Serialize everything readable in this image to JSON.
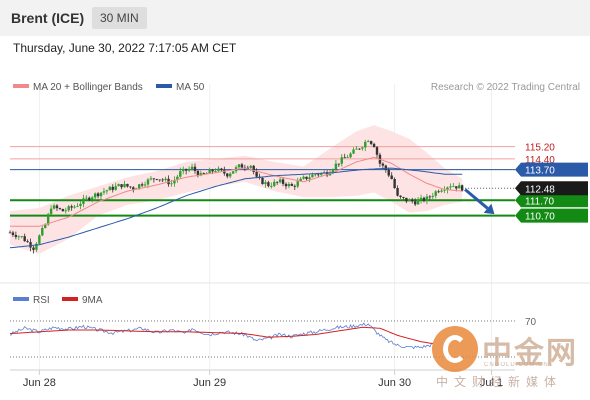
{
  "header": {
    "title": "Brent (ICE)",
    "timeframe": "30 MIN"
  },
  "timestamp": "Thursday, June 30, 2022 7:17:05 AM CET",
  "legend": {
    "ma20": {
      "label": "MA 20 + Bollinger Bands",
      "color": "#f08a8a"
    },
    "ma50": {
      "label": "MA 50",
      "color": "#2a5aa8"
    }
  },
  "credit": "Research © 2022 Trading Central",
  "colors": {
    "green": "#138a13",
    "blue": "#2a5aa8",
    "red_level": "#f0a0a0",
    "band_fill": "#fde3e3",
    "candle_up": "#2e9e2e",
    "candle_down": "#333333",
    "arrow": "#2a5aa8",
    "rsi": "#5a7fd0",
    "rsi_ma": "#d42020"
  },
  "indicator_legend": {
    "rsi": "RSI",
    "rsi_ma": "9MA"
  },
  "watermark": {
    "name": "中金网",
    "url": "CNGOLD.COM.CN",
    "sub": "中文财经新媒体"
  },
  "chart_data": [
    {
      "type": "candlestick",
      "title": "Brent (ICE)",
      "interval": "30 MIN",
      "x_labels": [
        "Jun 28",
        "Jun 29",
        "Jun 30",
        "Jul 1"
      ],
      "ylim": [
        106.5,
        118.5
      ],
      "current_price": {
        "value": 112.48,
        "label": "112.48"
      },
      "levels": [
        {
          "label": "115.20",
          "value": 115.2,
          "role": "resistance",
          "style": "red-text"
        },
        {
          "label": "114.40",
          "value": 114.4,
          "role": "resistance",
          "style": "red-text"
        },
        {
          "label": "113.70",
          "value": 113.7,
          "role": "pivot",
          "style": "blue-tag"
        },
        {
          "label": "111.70",
          "value": 111.7,
          "role": "support",
          "style": "green-tag"
        },
        {
          "label": "110.70",
          "value": 110.7,
          "role": "support",
          "style": "green-tag"
        }
      ],
      "close_path": [
        [
          0,
          109.6
        ],
        [
          4,
          109.3
        ],
        [
          8,
          108.6
        ],
        [
          12,
          110.1
        ],
        [
          14,
          111.3
        ],
        [
          18,
          111.0
        ],
        [
          22,
          111.3
        ],
        [
          27,
          111.9
        ],
        [
          32,
          112.3
        ],
        [
          38,
          112.7
        ],
        [
          42,
          112.5
        ],
        [
          46,
          112.9
        ],
        [
          50,
          113.2
        ],
        [
          55,
          112.8
        ],
        [
          58,
          113.5
        ],
        [
          62,
          113.8
        ],
        [
          65,
          113.3
        ],
        [
          70,
          113.7
        ],
        [
          74,
          113.4
        ],
        [
          78,
          113.9
        ],
        [
          82,
          114.0
        ],
        [
          84,
          113.1
        ],
        [
          88,
          112.7
        ],
        [
          92,
          112.9
        ],
        [
          96,
          112.6
        ],
        [
          100,
          113.1
        ],
        [
          104,
          113.4
        ],
        [
          108,
          113.5
        ],
        [
          112,
          114.2
        ],
        [
          116,
          114.7
        ],
        [
          120,
          115.3
        ],
        [
          122,
          115.7
        ],
        [
          124,
          115.3
        ],
        [
          126,
          114.1
        ],
        [
          128,
          113.7
        ],
        [
          130,
          113.1
        ],
        [
          132,
          111.9
        ],
        [
          135,
          111.7
        ],
        [
          138,
          111.6
        ],
        [
          142,
          111.8
        ],
        [
          146,
          112.4
        ],
        [
          150,
          112.7
        ],
        [
          154,
          112.5
        ]
      ],
      "ma20_path": [
        [
          0,
          110.0
        ],
        [
          10,
          110.0
        ],
        [
          20,
          110.6
        ],
        [
          30,
          111.6
        ],
        [
          40,
          112.3
        ],
        [
          50,
          112.7
        ],
        [
          60,
          113.2
        ],
        [
          70,
          113.5
        ],
        [
          80,
          113.8
        ],
        [
          90,
          113.3
        ],
        [
          100,
          112.9
        ],
        [
          110,
          113.5
        ],
        [
          118,
          114.2
        ],
        [
          124,
          114.5
        ],
        [
          130,
          114.1
        ],
        [
          136,
          113.4
        ],
        [
          142,
          112.8
        ],
        [
          148,
          112.4
        ],
        [
          154,
          112.3
        ]
      ],
      "bb_upper": [
        [
          0,
          111.0
        ],
        [
          10,
          111.2
        ],
        [
          20,
          112.0
        ],
        [
          30,
          112.6
        ],
        [
          40,
          113.2
        ],
        [
          50,
          113.6
        ],
        [
          60,
          114.2
        ],
        [
          70,
          114.4
        ],
        [
          80,
          114.6
        ],
        [
          90,
          114.2
        ],
        [
          100,
          113.9
        ],
        [
          110,
          115.2
        ],
        [
          118,
          116.2
        ],
        [
          124,
          116.6
        ],
        [
          130,
          116.2
        ],
        [
          136,
          115.7
        ],
        [
          142,
          114.8
        ],
        [
          148,
          113.8
        ],
        [
          154,
          113.1
        ]
      ],
      "bb_lower": [
        [
          0,
          108.8
        ],
        [
          10,
          108.2
        ],
        [
          20,
          109.2
        ],
        [
          30,
          110.7
        ],
        [
          40,
          111.4
        ],
        [
          50,
          111.7
        ],
        [
          60,
          112.2
        ],
        [
          70,
          112.6
        ],
        [
          80,
          112.9
        ],
        [
          90,
          112.3
        ],
        [
          100,
          111.9
        ],
        [
          110,
          111.9
        ],
        [
          118,
          112.0
        ],
        [
          124,
          112.2
        ],
        [
          130,
          111.6
        ],
        [
          136,
          110.9
        ],
        [
          142,
          111.0
        ],
        [
          148,
          111.4
        ],
        [
          154,
          111.6
        ]
      ],
      "ma50_path": [
        [
          0,
          108.6
        ],
        [
          10,
          108.8
        ],
        [
          20,
          109.3
        ],
        [
          30,
          109.9
        ],
        [
          40,
          110.5
        ],
        [
          50,
          111.2
        ],
        [
          60,
          112.0
        ],
        [
          70,
          112.6
        ],
        [
          80,
          113.1
        ],
        [
          90,
          113.3
        ],
        [
          100,
          113.4
        ],
        [
          110,
          113.5
        ],
        [
          120,
          113.7
        ],
        [
          130,
          113.8
        ],
        [
          140,
          113.6
        ],
        [
          148,
          113.4
        ],
        [
          154,
          113.4
        ]
      ],
      "projection": {
        "from": [
          155,
          112.4
        ],
        "to": [
          165,
          110.8
        ]
      }
    },
    {
      "type": "line",
      "series": [
        {
          "name": "RSI"
        },
        {
          "name": "9MA"
        }
      ],
      "ylim": [
        20,
        80
      ],
      "levels": [
        {
          "label": "70",
          "value": 70
        }
      ],
      "rsi_path": [
        [
          0,
          55
        ],
        [
          5,
          62
        ],
        [
          10,
          58
        ],
        [
          15,
          63
        ],
        [
          20,
          61
        ],
        [
          25,
          64
        ],
        [
          30,
          60
        ],
        [
          35,
          57
        ],
        [
          40,
          59
        ],
        [
          45,
          62
        ],
        [
          50,
          57
        ],
        [
          55,
          60
        ],
        [
          60,
          56
        ],
        [
          62,
          62
        ],
        [
          65,
          58
        ],
        [
          68,
          55
        ],
        [
          72,
          58
        ],
        [
          76,
          57
        ],
        [
          80,
          55
        ],
        [
          84,
          48
        ],
        [
          88,
          51
        ],
        [
          92,
          55
        ],
        [
          96,
          53
        ],
        [
          100,
          56
        ],
        [
          104,
          58
        ],
        [
          108,
          61
        ],
        [
          112,
          63
        ],
        [
          116,
          64
        ],
        [
          120,
          66
        ],
        [
          122,
          67
        ],
        [
          124,
          60
        ],
        [
          128,
          49
        ],
        [
          132,
          43
        ],
        [
          136,
          41
        ],
        [
          140,
          41
        ],
        [
          144,
          44
        ]
      ],
      "rsi_ma_path": [
        [
          0,
          56
        ],
        [
          10,
          58
        ],
        [
          20,
          60
        ],
        [
          30,
          60
        ],
        [
          40,
          59
        ],
        [
          50,
          58
        ],
        [
          60,
          58
        ],
        [
          70,
          57
        ],
        [
          80,
          56
        ],
        [
          88,
          52
        ],
        [
          96,
          53
        ],
        [
          104,
          55
        ],
        [
          112,
          59
        ],
        [
          120,
          63
        ],
        [
          126,
          62
        ],
        [
          132,
          54
        ],
        [
          140,
          47
        ],
        [
          144,
          45
        ]
      ]
    }
  ]
}
